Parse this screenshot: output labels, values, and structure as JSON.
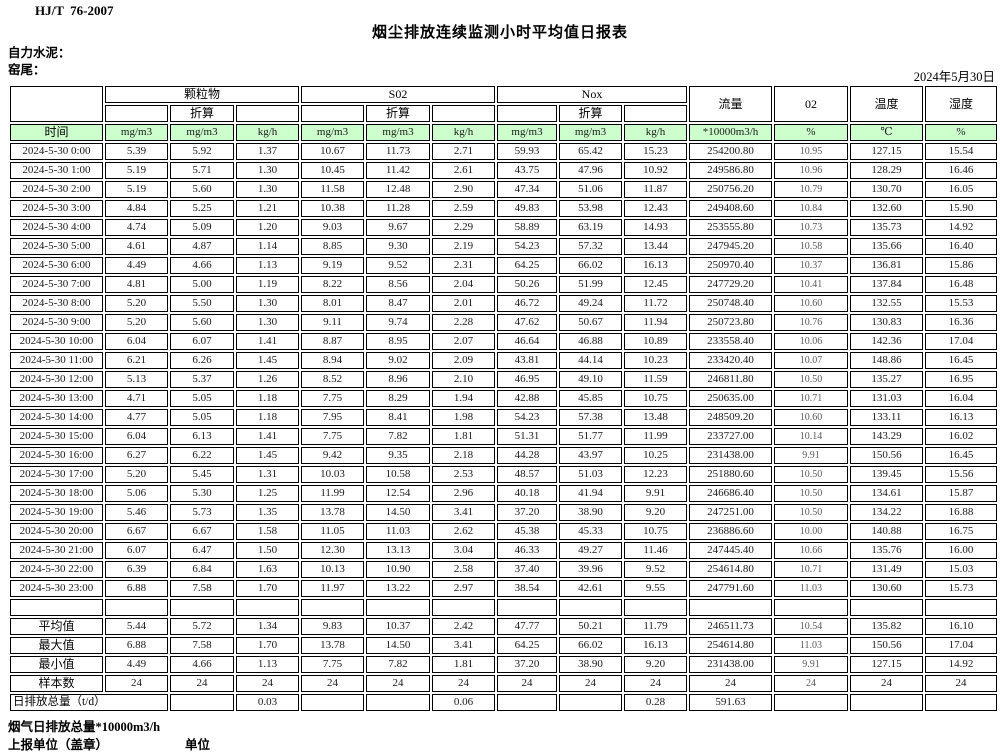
{
  "doc": {
    "standard": "HJ/T  76-2007",
    "title": "烟尘排放连续监测小时平均值日报表",
    "company": "自力水泥：",
    "site": "窑尾：",
    "date": "2024年5月30日"
  },
  "table": {
    "col_groups": {
      "pm": "颗粒物",
      "so2": "S02",
      "nox": "Nox",
      "converted": "折算",
      "flow": "流量",
      "o2": "02",
      "temp": "温度",
      "humidity": "湿度"
    },
    "time_label": "时间",
    "units": [
      "mg/m3",
      "mg/m3",
      "kg/h",
      "mg/m3",
      "mg/m3",
      "kg/h",
      "mg/m3",
      "mg/m3",
      "kg/h",
      "*10000m3/h",
      "%",
      "℃",
      "%"
    ],
    "rows": [
      {
        "time": "2024-5-30 0:00",
        "values": [
          "5.39",
          "5.92",
          "1.37",
          "10.67",
          "11.73",
          "2.71",
          "59.93",
          "65.42",
          "15.23",
          "254200.80",
          "10.95",
          "127.15",
          "15.54"
        ]
      },
      {
        "time": "2024-5-30 1:00",
        "values": [
          "5.19",
          "5.71",
          "1.30",
          "10.45",
          "11.42",
          "2.61",
          "43.75",
          "47.96",
          "10.92",
          "249586.80",
          "10.96",
          "128.29",
          "16.46"
        ]
      },
      {
        "time": "2024-5-30 2:00",
        "values": [
          "5.19",
          "5.60",
          "1.30",
          "11.58",
          "12.48",
          "2.90",
          "47.34",
          "51.06",
          "11.87",
          "250756.20",
          "10.79",
          "130.70",
          "16.05"
        ]
      },
      {
        "time": "2024-5-30 3:00",
        "values": [
          "4.84",
          "5.25",
          "1.21",
          "10.38",
          "11.28",
          "2.59",
          "49.83",
          "53.98",
          "12.43",
          "249408.60",
          "10.84",
          "132.60",
          "15.90"
        ]
      },
      {
        "time": "2024-5-30 4:00",
        "values": [
          "4.74",
          "5.09",
          "1.20",
          "9.03",
          "9.67",
          "2.29",
          "58.89",
          "63.19",
          "14.93",
          "253555.80",
          "10.73",
          "135.73",
          "14.92"
        ]
      },
      {
        "time": "2024-5-30 5:00",
        "values": [
          "4.61",
          "4.87",
          "1.14",
          "8.85",
          "9.30",
          "2.19",
          "54.23",
          "57.32",
          "13.44",
          "247945.20",
          "10.58",
          "135.66",
          "16.40"
        ]
      },
      {
        "time": "2024-5-30 6:00",
        "values": [
          "4.49",
          "4.66",
          "1.13",
          "9.19",
          "9.52",
          "2.31",
          "64.25",
          "66.02",
          "16.13",
          "250970.40",
          "10.37",
          "136.81",
          "15.86"
        ]
      },
      {
        "time": "2024-5-30 7:00",
        "values": [
          "4.81",
          "5.00",
          "1.19",
          "8.22",
          "8.56",
          "2.04",
          "50.26",
          "51.99",
          "12.45",
          "247729.20",
          "10.41",
          "137.84",
          "16.48"
        ]
      },
      {
        "time": "2024-5-30 8:00",
        "values": [
          "5.20",
          "5.50",
          "1.30",
          "8.01",
          "8.47",
          "2.01",
          "46.72",
          "49.24",
          "11.72",
          "250748.40",
          "10.60",
          "132.55",
          "15.53"
        ]
      },
      {
        "time": "2024-5-30 9:00",
        "values": [
          "5.20",
          "5.60",
          "1.30",
          "9.11",
          "9.74",
          "2.28",
          "47.62",
          "50.67",
          "11.94",
          "250723.80",
          "10.76",
          "130.83",
          "16.36"
        ]
      },
      {
        "time": "2024-5-30 10:00",
        "values": [
          "6.04",
          "6.07",
          "1.41",
          "8.87",
          "8.95",
          "2.07",
          "46.64",
          "46.88",
          "10.89",
          "233558.40",
          "10.06",
          "142.36",
          "17.04"
        ]
      },
      {
        "time": "2024-5-30 11:00",
        "values": [
          "6.21",
          "6.26",
          "1.45",
          "8.94",
          "9.02",
          "2.09",
          "43.81",
          "44.14",
          "10.23",
          "233420.40",
          "10.07",
          "148.86",
          "16.45"
        ]
      },
      {
        "time": "2024-5-30 12:00",
        "values": [
          "5.13",
          "5.37",
          "1.26",
          "8.52",
          "8.96",
          "2.10",
          "46.95",
          "49.10",
          "11.59",
          "246811.80",
          "10.50",
          "135.27",
          "16.95"
        ]
      },
      {
        "time": "2024-5-30 13:00",
        "values": [
          "4.71",
          "5.05",
          "1.18",
          "7.75",
          "8.29",
          "1.94",
          "42.88",
          "45.85",
          "10.75",
          "250635.00",
          "10.71",
          "131.03",
          "16.04"
        ]
      },
      {
        "time": "2024-5-30 14:00",
        "values": [
          "4.77",
          "5.05",
          "1.18",
          "7.95",
          "8.41",
          "1.98",
          "54.23",
          "57.38",
          "13.48",
          "248509.20",
          "10.60",
          "133.11",
          "16.13"
        ]
      },
      {
        "time": "2024-5-30 15:00",
        "values": [
          "6.04",
          "6.13",
          "1.41",
          "7.75",
          "7.82",
          "1.81",
          "51.31",
          "51.77",
          "11.99",
          "233727.00",
          "10.14",
          "143.29",
          "16.02"
        ]
      },
      {
        "time": "2024-5-30 16:00",
        "values": [
          "6.27",
          "6.22",
          "1.45",
          "9.42",
          "9.35",
          "2.18",
          "44.28",
          "43.97",
          "10.25",
          "231438.00",
          "9.91",
          "150.56",
          "16.45"
        ]
      },
      {
        "time": "2024-5-30 17:00",
        "values": [
          "5.20",
          "5.45",
          "1.31",
          "10.03",
          "10.58",
          "2.53",
          "48.57",
          "51.03",
          "12.23",
          "251880.60",
          "10.50",
          "139.45",
          "15.56"
        ]
      },
      {
        "time": "2024-5-30 18:00",
        "values": [
          "5.06",
          "5.30",
          "1.25",
          "11.99",
          "12.54",
          "2.96",
          "40.18",
          "41.94",
          "9.91",
          "246686.40",
          "10.50",
          "134.61",
          "15.87"
        ]
      },
      {
        "time": "2024-5-30 19:00",
        "values": [
          "5.46",
          "5.73",
          "1.35",
          "13.78",
          "14.50",
          "3.41",
          "37.20",
          "38.90",
          "9.20",
          "247251.00",
          "10.50",
          "134.22",
          "16.88"
        ]
      },
      {
        "time": "2024-5-30 20:00",
        "values": [
          "6.67",
          "6.67",
          "1.58",
          "11.05",
          "11.03",
          "2.62",
          "45.38",
          "45.33",
          "10.75",
          "236886.60",
          "10.00",
          "140.88",
          "16.75"
        ]
      },
      {
        "time": "2024-5-30 21:00",
        "values": [
          "6.07",
          "6.47",
          "1.50",
          "12.30",
          "13.13",
          "3.04",
          "46.33",
          "49.27",
          "11.46",
          "247445.40",
          "10.66",
          "135.76",
          "16.00"
        ]
      },
      {
        "time": "2024-5-30 22:00",
        "values": [
          "6.39",
          "6.84",
          "1.63",
          "10.13",
          "10.90",
          "2.58",
          "37.40",
          "39.96",
          "9.52",
          "254614.80",
          "10.71",
          "131.49",
          "15.03"
        ]
      },
      {
        "time": "2024-5-30 23:00",
        "values": [
          "6.88",
          "7.58",
          "1.70",
          "11.97",
          "13.22",
          "2.97",
          "38.54",
          "42.61",
          "9.55",
          "247791.60",
          "11.03",
          "130.60",
          "15.73"
        ]
      }
    ],
    "summary_rows": [
      {
        "label": "平均值",
        "values": [
          "5.44",
          "5.72",
          "1.34",
          "9.83",
          "10.37",
          "2.42",
          "47.77",
          "50.21",
          "11.79",
          "246511.73",
          "10.54",
          "135.82",
          "16.10"
        ]
      },
      {
        "label": "最大值",
        "values": [
          "6.88",
          "7.58",
          "1.70",
          "13.78",
          "14.50",
          "3.41",
          "64.25",
          "66.02",
          "16.13",
          "254614.80",
          "11.03",
          "150.56",
          "17.04"
        ]
      },
      {
        "label": "最小值",
        "values": [
          "4.49",
          "4.66",
          "1.13",
          "7.75",
          "7.82",
          "1.81",
          "37.20",
          "38.90",
          "9.20",
          "231438.00",
          "9.91",
          "127.15",
          "14.92"
        ]
      },
      {
        "label": "样本数",
        "values": [
          "24",
          "24",
          "24",
          "24",
          "24",
          "24",
          "24",
          "24",
          "24",
          "24",
          "24",
          "24",
          "24"
        ]
      }
    ],
    "total_row": {
      "label": "日排放总量（t/d）",
      "pm_kgh": "0.03",
      "so2_kgh": "0.06",
      "nox_kgh": "0.28",
      "flow": "591.63"
    }
  },
  "footer": {
    "line1": "烟气日排放总量*10000m3/h",
    "line2": "上报单位（盖章）",
    "line3": "单位"
  },
  "colors": {
    "header_green": "#ccffcc",
    "border": "#000000"
  }
}
